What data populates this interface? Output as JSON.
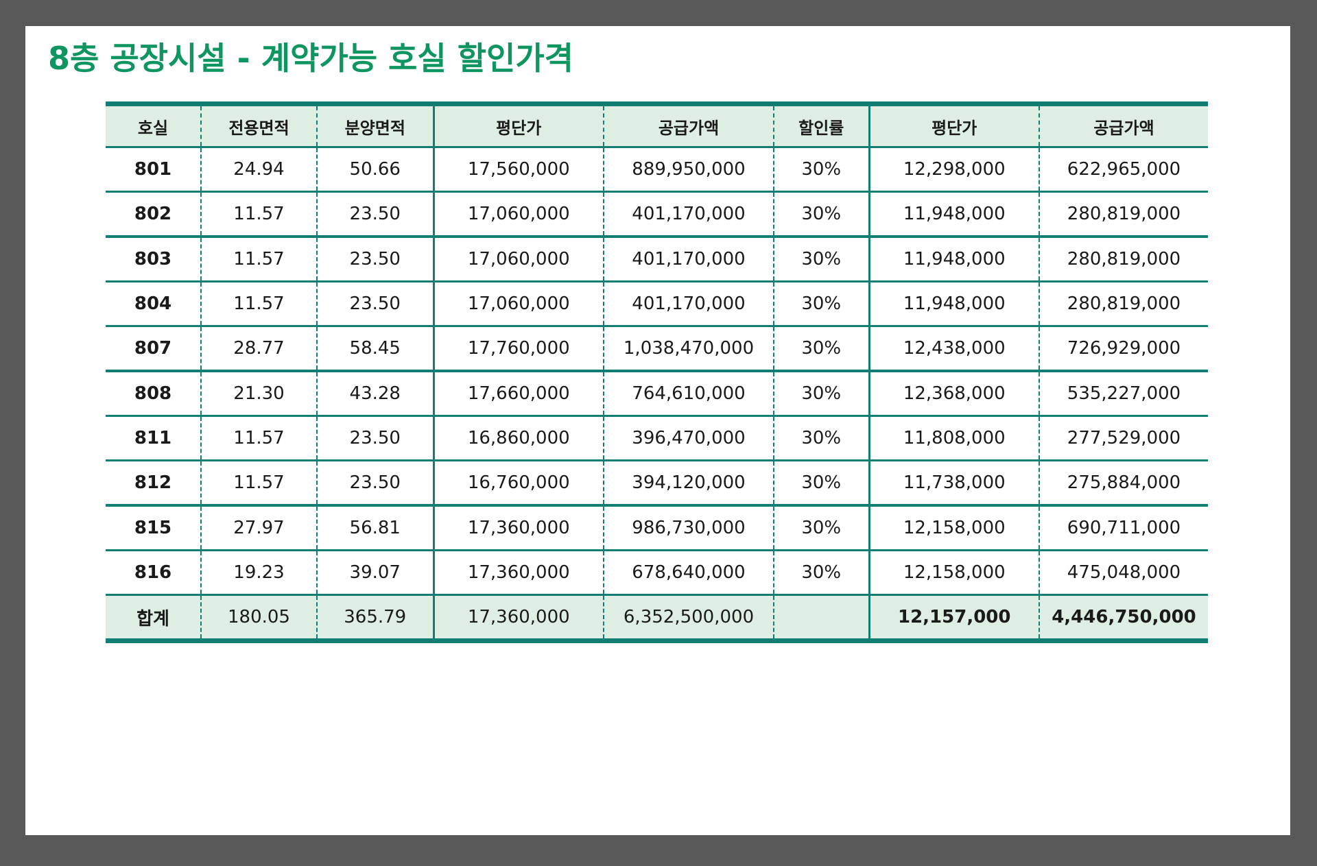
{
  "title": "8층 공장시설 - 계약가능 호실 할인가격",
  "table": {
    "headers": [
      "호실",
      "전용면적",
      "분양면적",
      "평단가",
      "공급가액",
      "할인률",
      "평단가",
      "공급가액"
    ],
    "rows": [
      [
        "801",
        "24.94",
        "50.66",
        "17,560,000",
        "889,950,000",
        "30%",
        "12,298,000",
        "622,965,000"
      ],
      [
        "802",
        "11.57",
        "23.50",
        "17,060,000",
        "401,170,000",
        "30%",
        "11,948,000",
        "280,819,000"
      ],
      [
        "803",
        "11.57",
        "23.50",
        "17,060,000",
        "401,170,000",
        "30%",
        "11,948,000",
        "280,819,000"
      ],
      [
        "804",
        "11.57",
        "23.50",
        "17,060,000",
        "401,170,000",
        "30%",
        "11,948,000",
        "280,819,000"
      ],
      [
        "807",
        "28.77",
        "58.45",
        "17,760,000",
        "1,038,470,000",
        "30%",
        "12,438,000",
        "726,929,000"
      ],
      [
        "808",
        "21.30",
        "43.28",
        "17,660,000",
        "764,610,000",
        "30%",
        "12,368,000",
        "535,227,000"
      ],
      [
        "811",
        "11.57",
        "23.50",
        "16,860,000",
        "396,470,000",
        "30%",
        "11,808,000",
        "277,529,000"
      ],
      [
        "812",
        "11.57",
        "23.50",
        "16,760,000",
        "394,120,000",
        "30%",
        "11,738,000",
        "275,884,000"
      ],
      [
        "815",
        "27.97",
        "56.81",
        "17,360,000",
        "986,730,000",
        "30%",
        "12,158,000",
        "690,711,000"
      ],
      [
        "816",
        "19.23",
        "39.07",
        "17,360,000",
        "678,640,000",
        "30%",
        "12,158,000",
        "475,048,000"
      ]
    ],
    "total": [
      "합계",
      "180.05",
      "365.79",
      "17,360,000",
      "6,352,500,000",
      "",
      "12,157,000",
      "4,446,750,000"
    ]
  },
  "colors": {
    "title": "#0f9560",
    "border": "#127e73",
    "header_bg": "#dfeee2",
    "frame": "#595959"
  }
}
